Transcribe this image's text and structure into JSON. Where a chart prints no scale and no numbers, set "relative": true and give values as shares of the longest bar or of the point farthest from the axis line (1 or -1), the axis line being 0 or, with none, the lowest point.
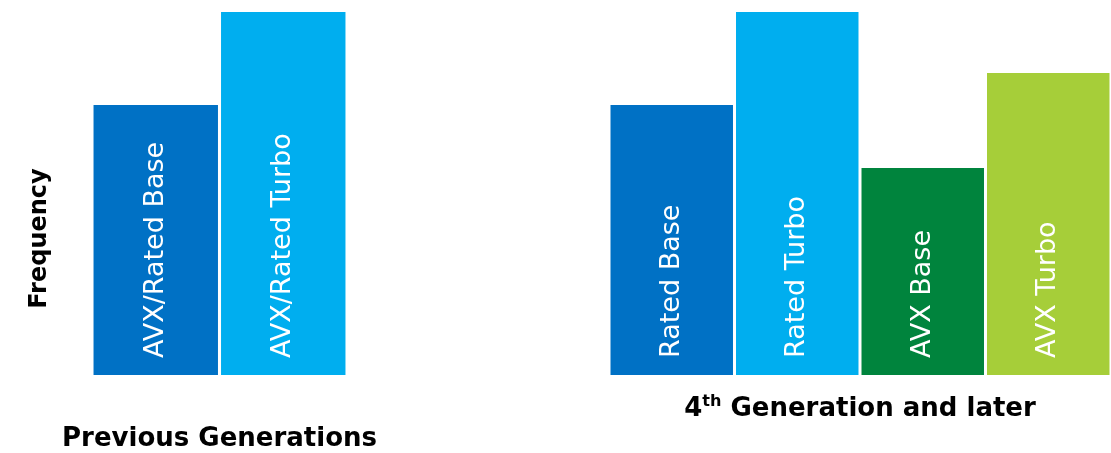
{
  "chart_data": [
    {
      "type": "bar",
      "relative": true,
      "ylabel": "Frequency",
      "xlabel": "Previous Generations",
      "categories": [
        "AVX/Rated Base",
        "AVX/Rated Turbo"
      ],
      "values": [
        0.744,
        1
      ],
      "colors": [
        "#0071c5",
        "#00aeef"
      ]
    },
    {
      "type": "bar",
      "relative": true,
      "xlabel": "4$^{th}$ Generation and later",
      "categories": [
        "Rated Base",
        "Rated Turbo",
        "AVX Base",
        "AVX Turbo"
      ],
      "values": [
        0.744,
        1,
        0.57,
        0.832
      ],
      "colors": [
        "#0071c5",
        "#00aeef",
        "#00843d",
        "#a6ce39"
      ]
    }
  ]
}
